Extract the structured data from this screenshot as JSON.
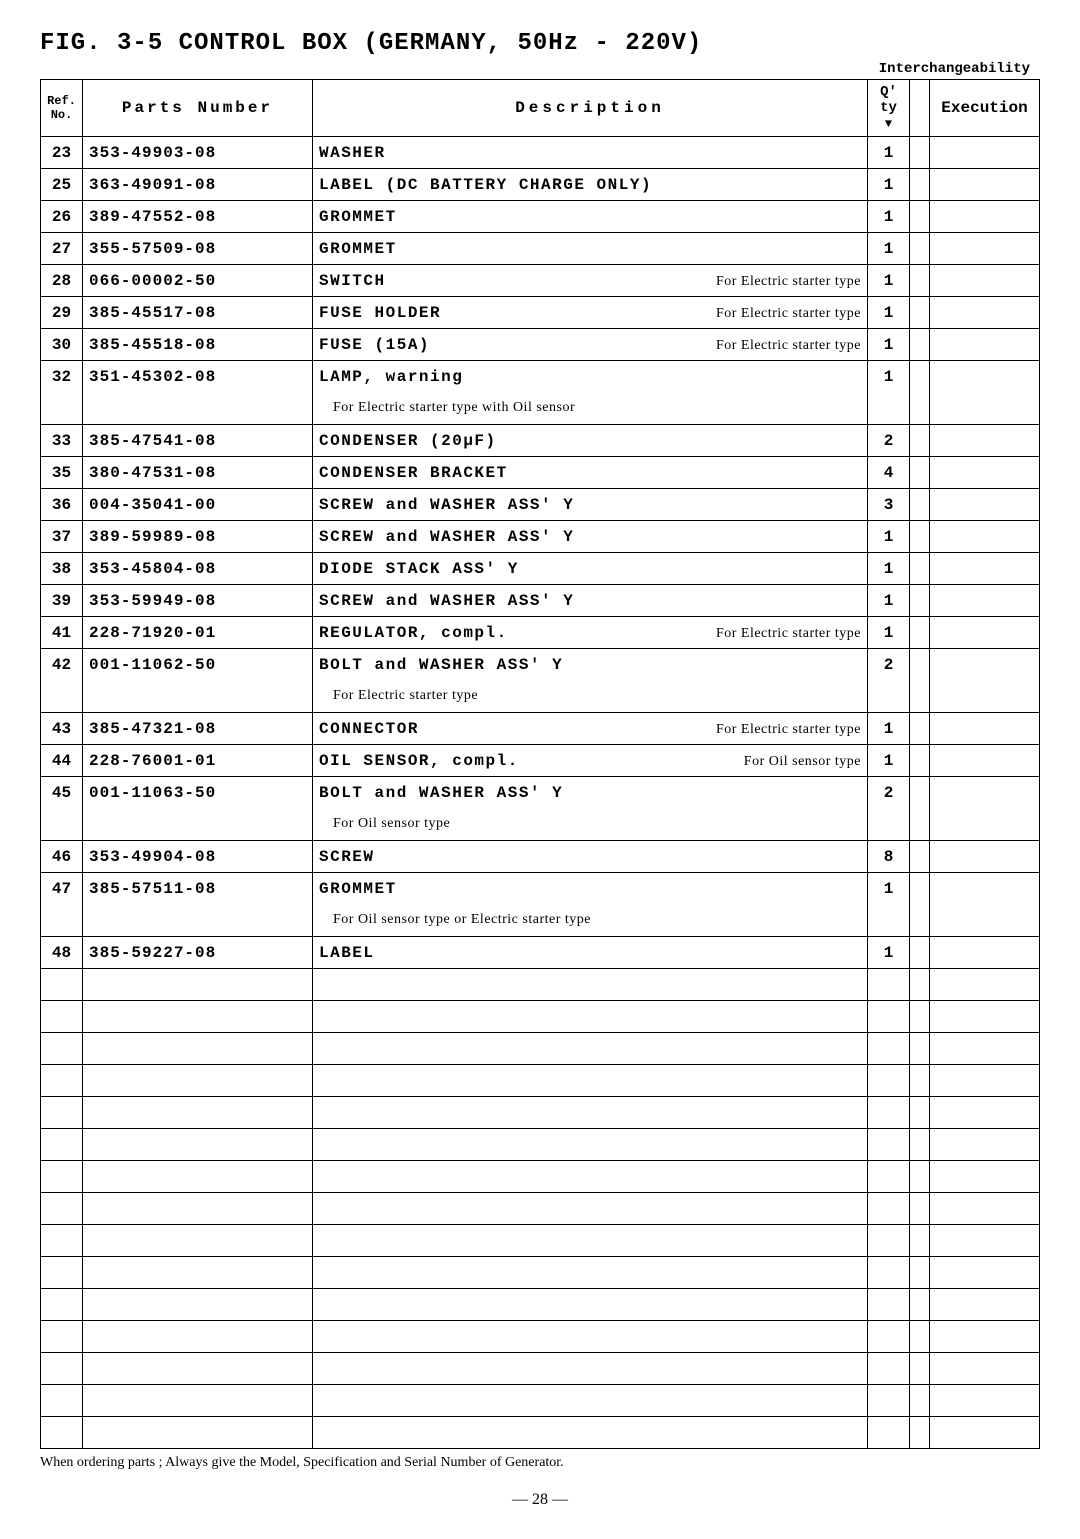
{
  "title": "FIG. 3-5  CONTROL  BOX  (GERMANY,  50Hz - 220V)",
  "interchange_label": "Interchangeability",
  "headers": {
    "ref": "Ref.\nNo.",
    "parts": "Parts  Number",
    "desc": "Description",
    "qty": "Q' ty",
    "exec": "Execution"
  },
  "rows": [
    {
      "ref": "23",
      "part": "353-49903-08",
      "desc": "WASHER",
      "note": "",
      "qty": "1"
    },
    {
      "ref": "25",
      "part": "363-49091-08",
      "desc": "LABEL (DC  BATTERY  CHARGE  ONLY)",
      "note": "",
      "qty": "1"
    },
    {
      "ref": "26",
      "part": "389-47552-08",
      "desc": "GROMMET",
      "note": "",
      "qty": "1"
    },
    {
      "ref": "27",
      "part": "355-57509-08",
      "desc": "GROMMET",
      "note": "",
      "qty": "1"
    },
    {
      "ref": "28",
      "part": "066-00002-50",
      "desc": "SWITCH",
      "note": "For Electric starter type",
      "qty": "1"
    },
    {
      "ref": "29",
      "part": "385-45517-08",
      "desc": "FUSE  HOLDER",
      "note": "For Electric starter type",
      "qty": "1"
    },
    {
      "ref": "30",
      "part": "385-45518-08",
      "desc": "FUSE (15A)",
      "note": "For Electric starter type",
      "qty": "1"
    },
    {
      "ref": "32",
      "part": "351-45302-08",
      "desc": "LAMP,  warning",
      "note": "",
      "qty": "1",
      "sub": "For Electric starter type with Oil sensor"
    },
    {
      "ref": "33",
      "part": "385-47541-08",
      "desc": "CONDENSER (20μF)",
      "note": "",
      "qty": "2"
    },
    {
      "ref": "35",
      "part": "380-47531-08",
      "desc": "CONDENSER  BRACKET",
      "note": "",
      "qty": "4"
    },
    {
      "ref": "36",
      "part": "004-35041-00",
      "desc": "SCREW  and  WASHER  ASS' Y",
      "note": "",
      "qty": "3"
    },
    {
      "ref": "37",
      "part": "389-59989-08",
      "desc": "SCREW  and  WASHER  ASS' Y",
      "note": "",
      "qty": "1"
    },
    {
      "ref": "38",
      "part": "353-45804-08",
      "desc": "DIODE  STACK  ASS' Y",
      "note": "",
      "qty": "1"
    },
    {
      "ref": "39",
      "part": "353-59949-08",
      "desc": "SCREW  and  WASHER  ASS' Y",
      "note": "",
      "qty": "1"
    },
    {
      "ref": "41",
      "part": "228-71920-01",
      "desc": "REGULATOR,  compl.",
      "note": "For Electric starter type",
      "qty": "1"
    },
    {
      "ref": "42",
      "part": "001-11062-50",
      "desc": "BOLT  and  WASHER  ASS' Y",
      "note": "",
      "qty": "2",
      "sub": "For Electric starter type"
    },
    {
      "ref": "43",
      "part": "385-47321-08",
      "desc": "CONNECTOR",
      "note": "For Electric starter type",
      "qty": "1"
    },
    {
      "ref": "44",
      "part": "228-76001-01",
      "desc": "OIL  SENSOR,  compl.",
      "note": "For Oil sensor type",
      "qty": "1"
    },
    {
      "ref": "45",
      "part": "001-11063-50",
      "desc": "BOLT  and  WASHER  ASS' Y",
      "note": "",
      "qty": "2",
      "sub": "For Oil sensor type"
    },
    {
      "ref": "46",
      "part": "353-49904-08",
      "desc": "SCREW",
      "note": "",
      "qty": "8"
    },
    {
      "ref": "47",
      "part": "385-57511-08",
      "desc": "GROMMET",
      "note": "",
      "qty": "1",
      "sub": "For Oil sensor type or Electric starter type"
    },
    {
      "ref": "48",
      "part": "385-59227-08",
      "desc": "LABEL",
      "note": "",
      "qty": "1"
    }
  ],
  "empty_rows": 15,
  "footer_note": "When ordering parts ; Always give the Model, Specification and Serial Number of Generator.",
  "page_num": "— 28 —"
}
